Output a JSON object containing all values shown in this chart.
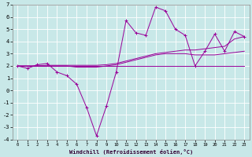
{
  "xlabel": "Windchill (Refroidissement éolien,°C)",
  "background_color": "#c8e8e8",
  "grid_color": "#aad4d4",
  "line_color": "#990099",
  "x_hours": [
    0,
    1,
    2,
    3,
    4,
    5,
    6,
    7,
    8,
    9,
    10,
    11,
    12,
    13,
    14,
    15,
    16,
    17,
    18,
    19,
    20,
    21,
    22,
    23
  ],
  "temp_line": [
    2.0,
    2.0,
    2.0,
    2.0,
    2.0,
    2.0,
    2.0,
    2.0,
    2.0,
    2.0,
    2.0,
    2.0,
    2.0,
    2.0,
    2.0,
    2.0,
    2.0,
    2.0,
    2.0,
    2.0,
    2.0,
    2.0,
    2.0,
    2.0
  ],
  "windchill_line": [
    2.0,
    1.8,
    2.1,
    2.2,
    1.5,
    1.2,
    0.5,
    -1.4,
    -3.7,
    -1.3,
    1.5,
    5.7,
    4.7,
    4.5,
    6.8,
    6.5,
    5.0,
    4.5,
    2.0,
    3.2,
    4.6,
    3.2,
    4.8,
    4.4
  ],
  "smooth1": [
    2.0,
    2.0,
    2.0,
    2.05,
    2.05,
    2.05,
    2.05,
    2.05,
    2.05,
    2.1,
    2.2,
    2.4,
    2.6,
    2.8,
    3.0,
    3.1,
    3.2,
    3.3,
    3.3,
    3.4,
    3.5,
    3.6,
    4.2,
    4.4
  ],
  "smooth2": [
    2.0,
    2.0,
    2.0,
    2.0,
    2.0,
    2.0,
    1.9,
    1.9,
    1.9,
    2.0,
    2.1,
    2.3,
    2.5,
    2.7,
    2.9,
    3.0,
    3.0,
    3.0,
    2.9,
    2.9,
    2.9,
    3.0,
    3.1,
    3.2
  ],
  "ylim": [
    -4,
    7
  ],
  "yticks": [
    -4,
    -3,
    -2,
    -1,
    0,
    1,
    2,
    3,
    4,
    5,
    6,
    7
  ],
  "xtick_labels": [
    "0",
    "1",
    "2",
    "3",
    "4",
    "5",
    "6",
    "7",
    "8",
    "9",
    "10",
    "11",
    "12",
    "13",
    "14",
    "15",
    "16",
    "17",
    "18",
    "19",
    "20",
    "21",
    "22",
    "23"
  ]
}
